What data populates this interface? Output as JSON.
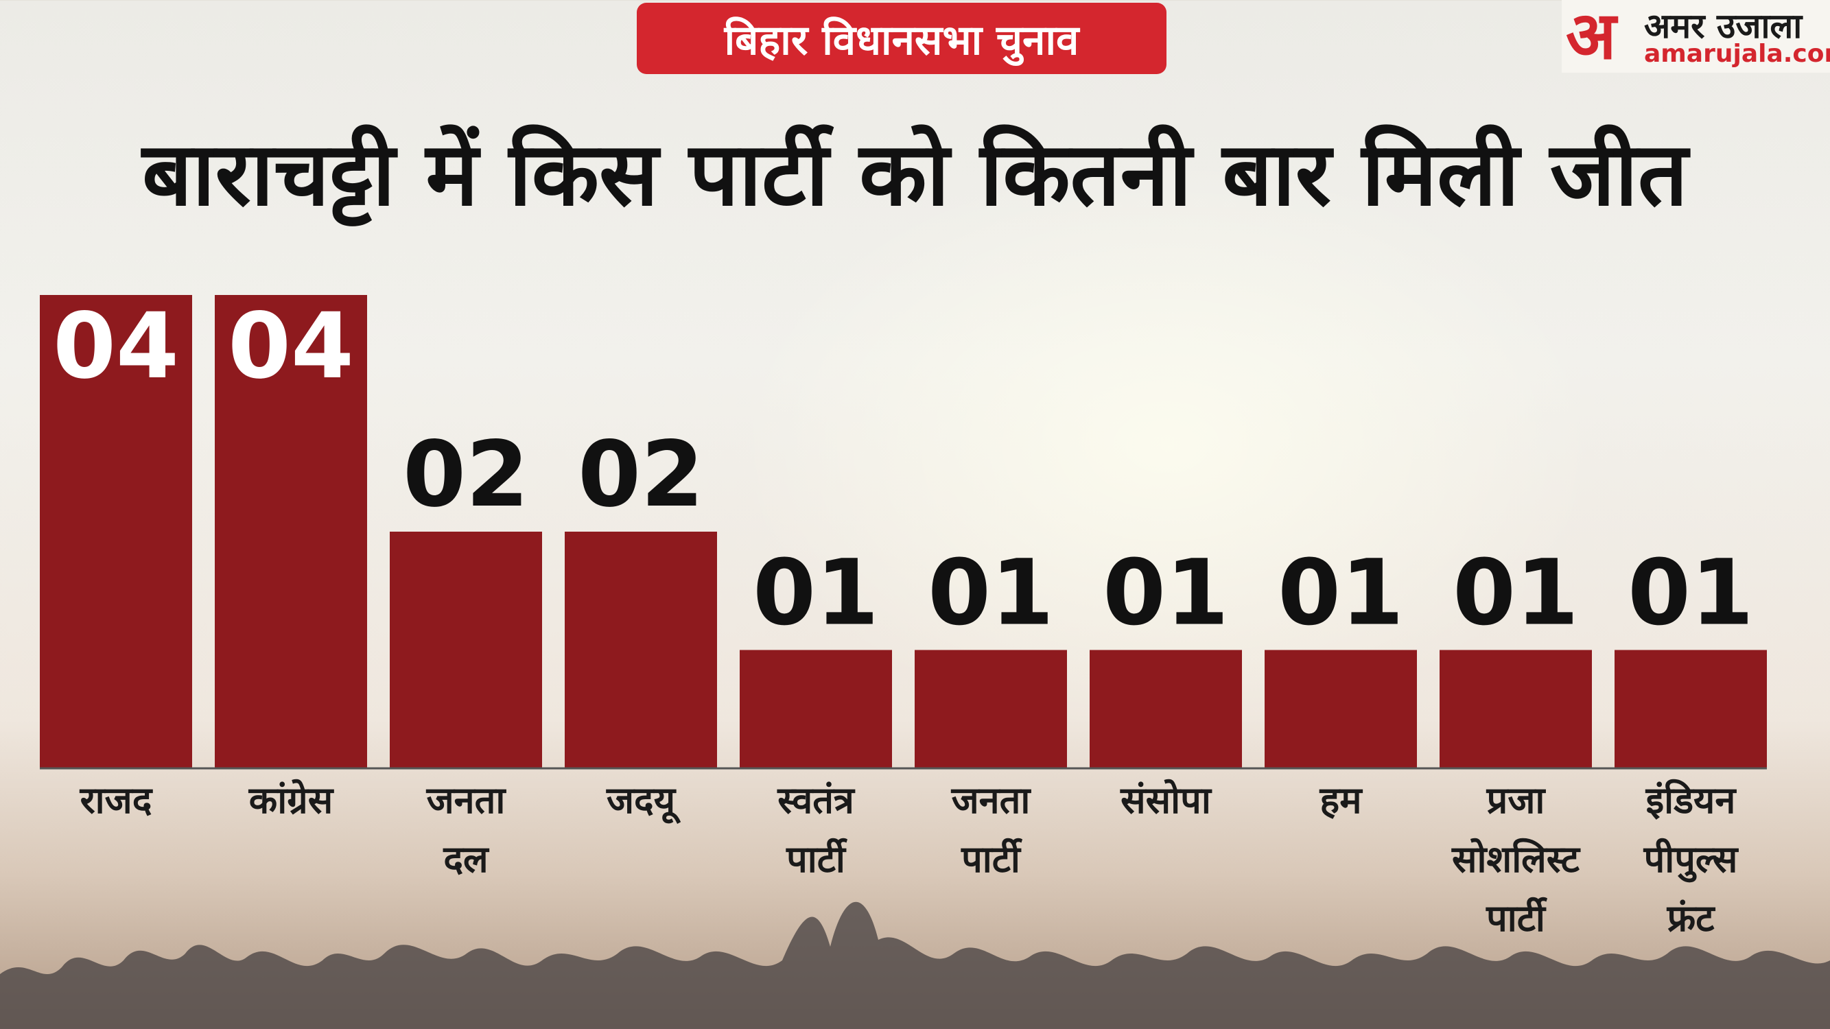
{
  "header": {
    "badge": "बिहार विधानसभा चुनाव",
    "title": "बाराचट्टी में किस पार्टी को कितनी बार मिली जीत"
  },
  "logo": {
    "mark": "अ",
    "name": "अमर उजाला",
    "site": "amarujala.com"
  },
  "colors": {
    "bar": "#8e1a1e",
    "badge": "#d4262e"
  },
  "chart_data": {
    "type": "bar",
    "categories": [
      [
        "राजद"
      ],
      [
        "कांग्रेस"
      ],
      [
        "जनता",
        "दल"
      ],
      [
        "जदयू"
      ],
      [
        "स्वतंत्र",
        "पार्टी"
      ],
      [
        "जनता",
        "पार्टी"
      ],
      [
        "संसोपा"
      ],
      [
        "हम"
      ],
      [
        "प्रजा",
        "सोशलिस्ट",
        "पार्टी"
      ],
      [
        "इंडियन",
        "पीपुल्स",
        "फ्रंट"
      ]
    ],
    "values": [
      4,
      4,
      2,
      2,
      1,
      1,
      1,
      1,
      1,
      1
    ],
    "value_labels": [
      "04",
      "04",
      "02",
      "02",
      "01",
      "01",
      "01",
      "01",
      "01",
      "01"
    ],
    "ylim": [
      0,
      4
    ]
  }
}
